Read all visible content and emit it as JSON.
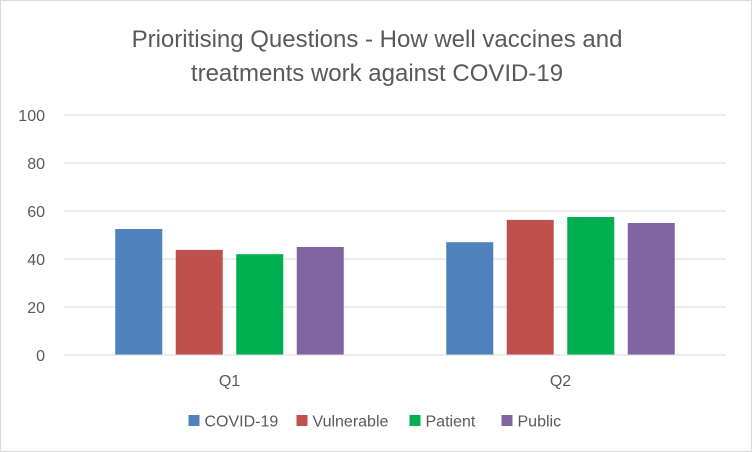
{
  "chart_data": {
    "type": "bar",
    "title": "Prioritising Questions - How well vaccines and treatments work against COVID-19",
    "title_lines": [
      "Prioritising Questions - How well vaccines and",
      "treatments work against COVID-19"
    ],
    "categories": [
      "Q1",
      "Q2"
    ],
    "series": [
      {
        "name": "COVID-19",
        "color": "#4f81bd",
        "values": [
          52.5,
          47
        ]
      },
      {
        "name": "Vulnerable",
        "color": "#c0504d",
        "values": [
          43.8,
          56.3
        ]
      },
      {
        "name": "Patient",
        "color": "#00b050",
        "values": [
          42,
          57.5
        ]
      },
      {
        "name": "Public",
        "color": "#8064a2",
        "values": [
          45,
          55
        ]
      }
    ],
    "xlabel": "",
    "ylabel": "",
    "ylim": [
      0,
      100
    ],
    "yticks": [
      0,
      20,
      40,
      60,
      80,
      100
    ],
    "grid": true,
    "legend_position": "bottom"
  }
}
